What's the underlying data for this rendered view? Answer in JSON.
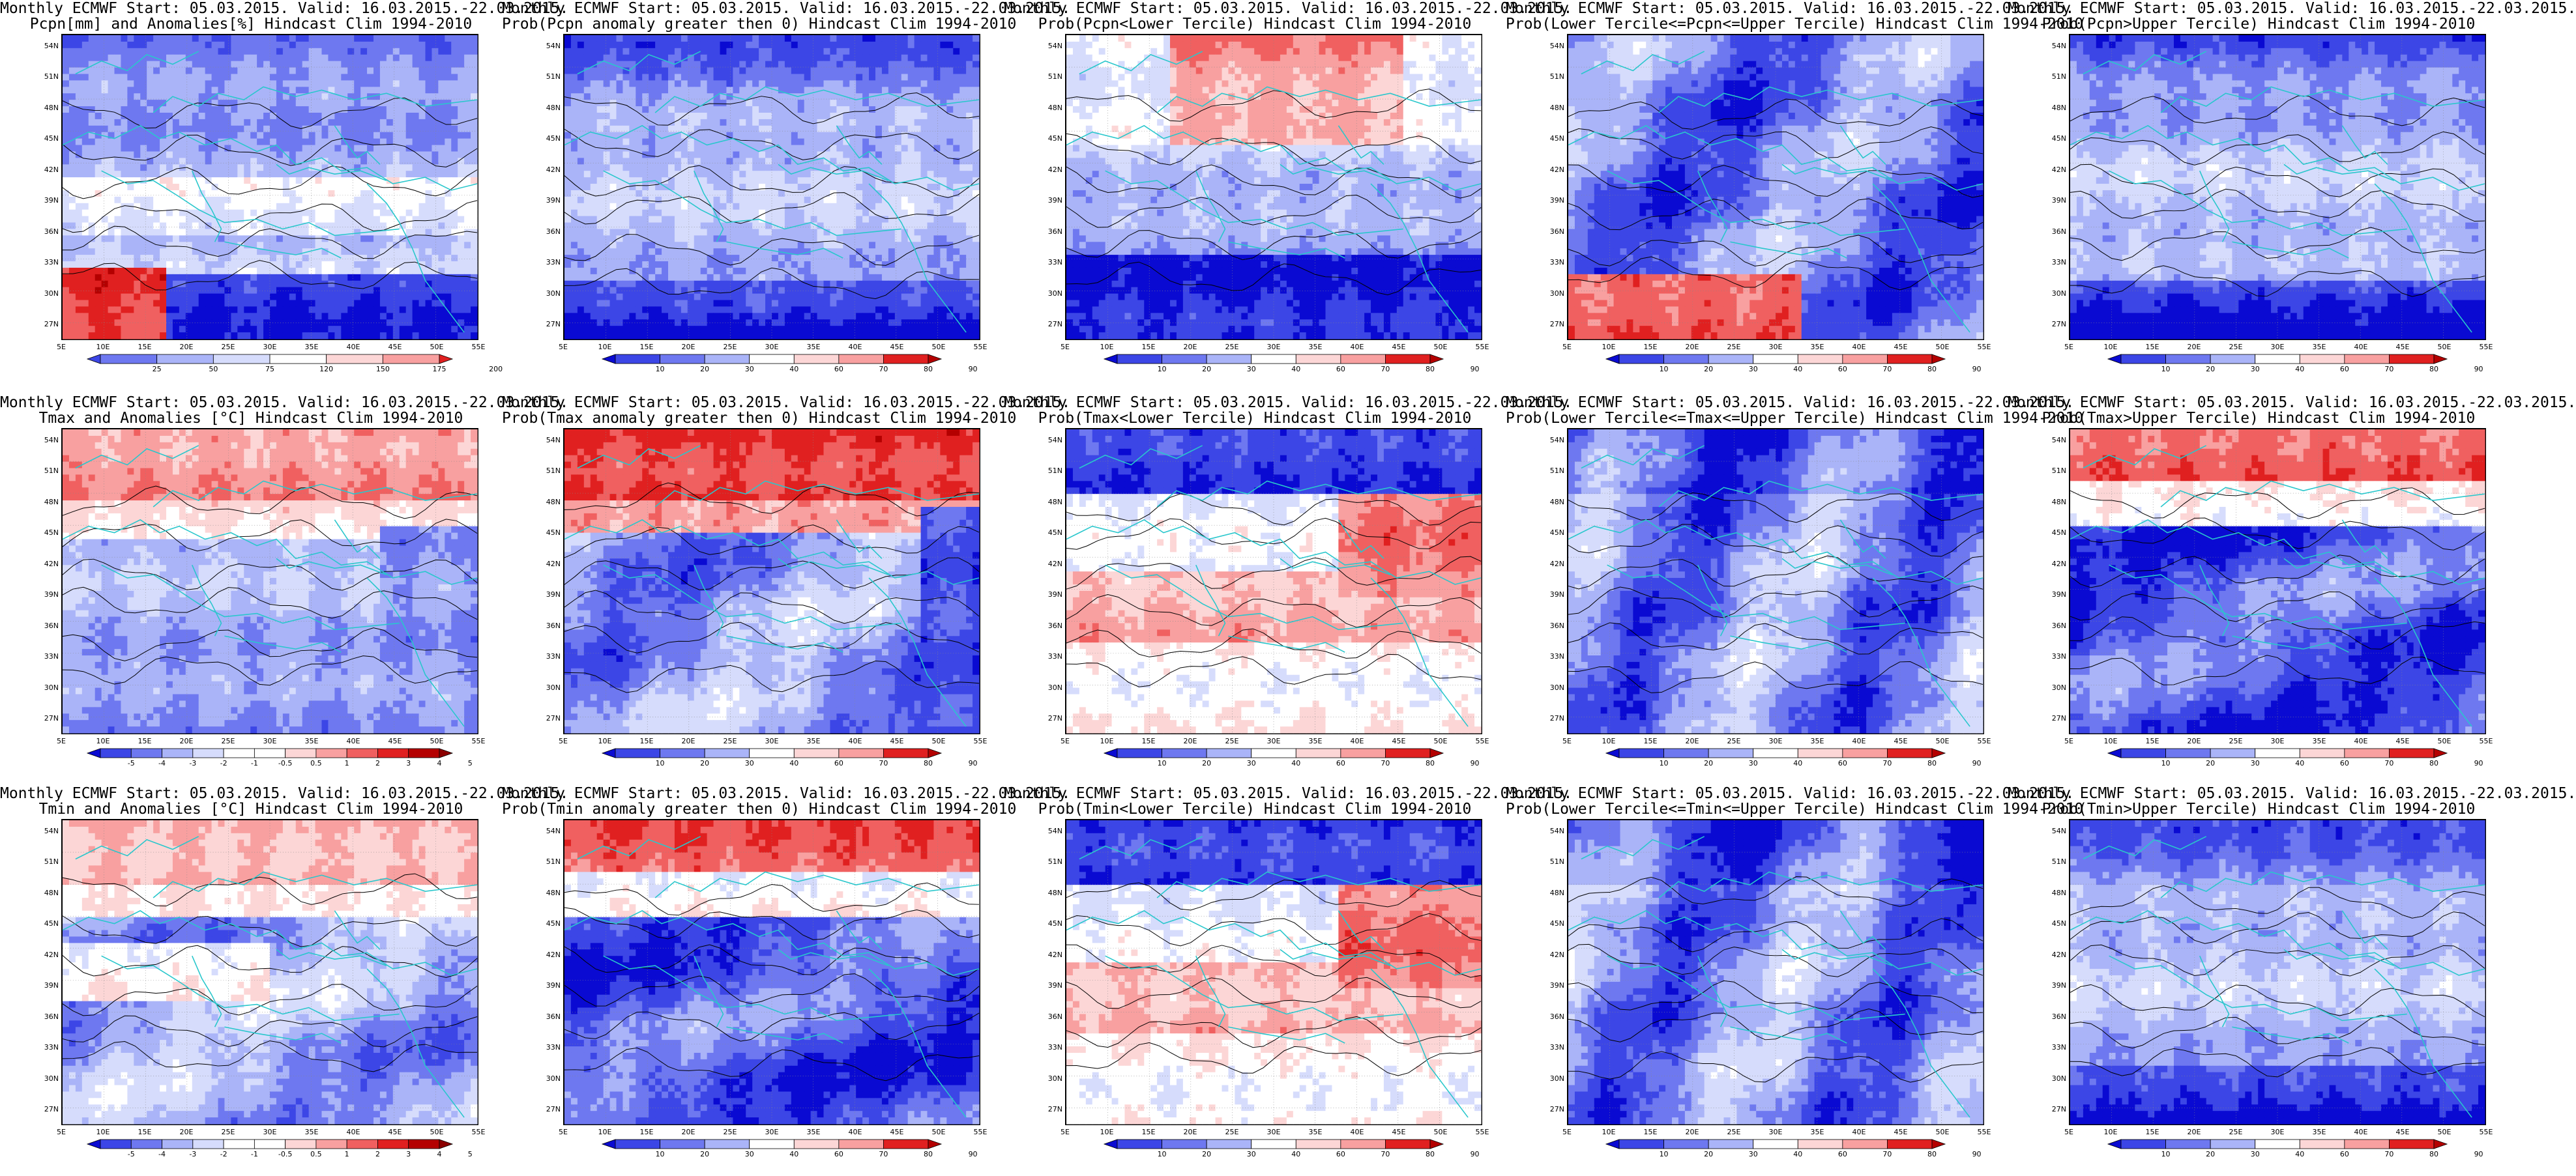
{
  "lat_labels": [
    "54N",
    "51N",
    "48N",
    "45N",
    "42N",
    "39N",
    "36N",
    "33N",
    "30N",
    "27N"
  ],
  "lon_labels": [
    "5E",
    "10E",
    "15E",
    "20E",
    "25E",
    "30E",
    "35E",
    "40E",
    "45E",
    "50E",
    "55E"
  ],
  "colors": {
    "dark_blue": "#0a0ad2",
    "blue": "#3c46e6",
    "mid_blue": "#6e78f0",
    "light_blue": "#aab4f8",
    "pale_blue": "#d6dcfc",
    "white": "#ffffff",
    "pale_red": "#fcd6d6",
    "light_red": "#f8a0a0",
    "mid_red": "#f06060",
    "red": "#e02020",
    "dark_red": "#b40000",
    "coast": "#29c7cc",
    "contour": "#000000"
  },
  "colorbars": {
    "precip_anom": [
      "25",
      "50",
      "75",
      "120",
      "150",
      "175",
      "200"
    ],
    "temp_anom": [
      "-5",
      "-4",
      "-3",
      "-2",
      "-1",
      "-0.5",
      "0.5",
      "1",
      "2",
      "3",
      "4",
      "5"
    ],
    "prob": [
      "10",
      "20",
      "30",
      "40",
      "60",
      "70",
      "80",
      "90"
    ]
  },
  "panels": [
    {
      "line1": "Monthly ECMWF Start: 05.03.2015. Valid: 16.03.2015.-22.03.2015.",
      "line2": "Pcpn[mm] and Anomalies[%] Hindcast Clim 1994-2010",
      "scheme": "pcp_anom",
      "cbar": "precip_anom"
    },
    {
      "line1": "Monthly ECMWF Start: 05.03.2015. Valid: 16.03.2015.-22.03.2015.",
      "line2": "Prob(Pcpn anomaly greater then 0) Hindcast Clim 1994-2010",
      "scheme": "blue_heavy",
      "cbar": "prob"
    },
    {
      "line1": "Monthly ECMWF Start: 05.03.2015. Valid: 16.03.2015.-22.03.2015.",
      "line2": "Prob(Pcpn<Lower Tercile) Hindcast Clim 1994-2010",
      "scheme": "red_top_blue_bottom",
      "cbar": "prob"
    },
    {
      "line1": "Monthly ECMWF Start: 05.03.2015. Valid: 16.03.2015.-22.03.2015.",
      "line2": "Prob(Lower Tercile<=Pcpn<=Upper Tercile) Hindcast Clim 1994-2010",
      "scheme": "blue_red_bottom",
      "cbar": "prob"
    },
    {
      "line1": "Monthly ECMWF Start: 05.03.2015. Valid: 16.03.2015.-22.03.2015.",
      "line2": "Prob(Pcpn>Upper Tercile) Hindcast Clim 1994-2010",
      "scheme": "blue_heavy",
      "cbar": "prob"
    },
    {
      "line1": "Monthly ECMWF Start: 05.03.2015. Valid: 16.03.2015.-22.03.2015.",
      "line2": "Tmax and Anomalies [°C] Hindcast Clim 1994-2010",
      "scheme": "red_top",
      "cbar": "temp_anom"
    },
    {
      "line1": "Monthly ECMWF Start: 05.03.2015. Valid: 16.03.2015.-22.03.2015.",
      "line2": "Prob(Tmax anomaly greater then 0) Hindcast Clim 1994-2010",
      "scheme": "red_top_strong",
      "cbar": "prob"
    },
    {
      "line1": "Monthly ECMWF Start: 05.03.2015. Valid: 16.03.2015.-22.03.2015.",
      "line2": "Prob(Tmax<Lower Tercile) Hindcast Clim 1994-2010",
      "scheme": "blue_top_red_mid",
      "cbar": "prob"
    },
    {
      "line1": "Monthly ECMWF Start: 05.03.2015. Valid: 16.03.2015.-22.03.2015.",
      "line2": "Prob(Lower Tercile<=Tmax<=Upper Tercile) Hindcast Clim 1994-2010",
      "scheme": "blue_mixed",
      "cbar": "prob"
    },
    {
      "line1": "Monthly ECMWF Start: 05.03.2015. Valid: 16.03.2015.-22.03.2015.",
      "line2": "Prob(Tmax>Upper Tercile) Hindcast Clim 1994-2010",
      "scheme": "red_top_blue",
      "cbar": "prob"
    },
    {
      "line1": "Monthly ECMWF Start: 05.03.2015. Valid: 16.03.2015.-22.03.2015.",
      "line2": "Tmin and Anomalies [°C] Hindcast Clim 1994-2010",
      "scheme": "red_top_light",
      "cbar": "temp_anom"
    },
    {
      "line1": "Monthly ECMWF Start: 05.03.2015. Valid: 16.03.2015.-22.03.2015.",
      "line2": "Prob(Tmin anomaly greater then 0) Hindcast Clim 1994-2010",
      "scheme": "red_top_blue",
      "cbar": "prob"
    },
    {
      "line1": "Monthly ECMWF Start: 05.03.2015. Valid: 16.03.2015.-22.03.2015.",
      "line2": "Prob(Tmin<Lower Tercile) Hindcast Clim 1994-2010",
      "scheme": "blue_top_red_mid",
      "cbar": "prob"
    },
    {
      "line1": "Monthly ECMWF Start: 05.03.2015. Valid: 16.03.2015.-22.03.2015.",
      "line2": "Prob(Lower Tercile<=Tmin<=Upper Tercile) Hindcast Clim 1994-2010",
      "scheme": "blue_mixed",
      "cbar": "prob"
    },
    {
      "line1": "Monthly ECMWF Start: 05.03.2015. Valid: 16.03.2015.-22.03.2015.",
      "line2": "Prob(Tmin>Upper Tercile) Hindcast Clim 1994-2010",
      "scheme": "blue_heavy",
      "cbar": "prob"
    }
  ]
}
